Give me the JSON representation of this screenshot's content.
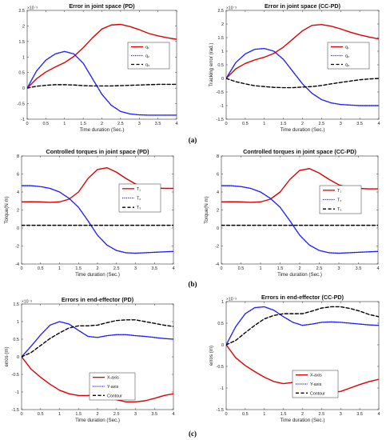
{
  "panel_labels": [
    "(a)",
    "(b)",
    "(c)"
  ],
  "chart_data": [
    {
      "type": "line",
      "title": "Error in joint space (PD)",
      "xlabel": "Time duration (Sec.)",
      "ylabel": "",
      "exponent": "×10⁻³",
      "xlim": [
        0,
        4
      ],
      "ylim": [
        -1,
        2.5
      ],
      "xticks": [
        "0",
        "0.5",
        "1",
        "1.5",
        "2",
        "2.5",
        "3",
        "3.5",
        "4"
      ],
      "yticks": [
        "-1",
        "-0.5",
        "0",
        "0.5",
        "1",
        "1.5",
        "2",
        "2.5"
      ],
      "legend": "center-right",
      "x": [
        0,
        0.25,
        0.5,
        0.75,
        1,
        1.25,
        1.5,
        1.75,
        2,
        2.25,
        2.5,
        2.75,
        3,
        3.25,
        3.5,
        3.75,
        4
      ],
      "series": [
        {
          "name": "q₁",
          "color": "#dd0000",
          "dash": "solid",
          "values": [
            0,
            0.3,
            0.52,
            0.68,
            0.82,
            1.02,
            1.3,
            1.62,
            1.9,
            2.03,
            2.05,
            1.98,
            1.88,
            1.76,
            1.68,
            1.62,
            1.57
          ]
        },
        {
          "name": "q₂",
          "color": "#1a1aff",
          "dash": "dotted",
          "values": [
            0,
            0.55,
            0.9,
            1.1,
            1.18,
            1.1,
            0.8,
            0.3,
            -0.2,
            -0.55,
            -0.75,
            -0.83,
            -0.86,
            -0.87,
            -0.87,
            -0.87,
            -0.87
          ]
        },
        {
          "name": "q₃",
          "color": "#000000",
          "dash": "dashed",
          "values": [
            0,
            0.06,
            0.09,
            0.11,
            0.11,
            0.1,
            0.08,
            0.07,
            0.07,
            0.07,
            0.08,
            0.09,
            0.1,
            0.11,
            0.12,
            0.12,
            0.12
          ]
        }
      ]
    },
    {
      "type": "line",
      "title": "Error in joint space (CC-PD)",
      "xlabel": "Time duration (Sec.)",
      "ylabel": "Tracking error (rad.)",
      "exponent": "×10⁻³",
      "xlim": [
        0,
        4
      ],
      "ylim": [
        -1.5,
        2.5
      ],
      "xticks": [
        "0",
        "0.5",
        "1",
        "1.5",
        "2",
        "2.5",
        "3",
        "3.5",
        "4"
      ],
      "yticks": [
        "-1.5",
        "-1",
        "-0.5",
        "0",
        "0.5",
        "1",
        "1.5",
        "2",
        "2.5"
      ],
      "legend": "center-right",
      "x": [
        0,
        0.25,
        0.5,
        0.75,
        1,
        1.25,
        1.5,
        1.75,
        2,
        2.25,
        2.5,
        2.75,
        3,
        3.25,
        3.5,
        3.75,
        4
      ],
      "series": [
        {
          "name": "q₁",
          "color": "#dd0000",
          "dash": "solid",
          "values": [
            0,
            0.35,
            0.55,
            0.68,
            0.78,
            0.92,
            1.15,
            1.45,
            1.75,
            1.95,
            1.98,
            1.92,
            1.82,
            1.7,
            1.6,
            1.52,
            1.45
          ]
        },
        {
          "name": "q₂",
          "color": "#1a1aff",
          "dash": "dotted",
          "values": [
            0,
            0.58,
            0.9,
            1.07,
            1.1,
            1.0,
            0.7,
            0.25,
            -0.2,
            -0.55,
            -0.78,
            -0.9,
            -0.96,
            -0.98,
            -1.0,
            -1.0,
            -1.0
          ]
        },
        {
          "name": "q₃",
          "color": "#000000",
          "dash": "dashed",
          "values": [
            0,
            -0.12,
            -0.2,
            -0.27,
            -0.3,
            -0.33,
            -0.34,
            -0.34,
            -0.32,
            -0.3,
            -0.26,
            -0.2,
            -0.15,
            -0.1,
            -0.05,
            -0.02,
            0
          ]
        }
      ]
    },
    {
      "type": "line",
      "title": "Controlled torques in joint space (PD)",
      "xlabel": "Time duration (Sec.)",
      "ylabel": "Torque(N m)",
      "exponent": "",
      "xlim": [
        0,
        4
      ],
      "ylim": [
        -4,
        8
      ],
      "xticks": [
        "0",
        "0.5",
        "1",
        "1.5",
        "2",
        "2.5",
        "3",
        "3.5",
        "4"
      ],
      "yticks": [
        "-4",
        "-2",
        "0",
        "2",
        "4",
        "6",
        "8"
      ],
      "legend": "center-right",
      "x": [
        0,
        0.25,
        0.5,
        0.75,
        1,
        1.25,
        1.5,
        1.75,
        2,
        2.25,
        2.5,
        2.75,
        3,
        3.25,
        3.5,
        3.75,
        4
      ],
      "series": [
        {
          "name": "T₁",
          "color": "#dd0000",
          "dash": "solid",
          "values": [
            2.9,
            2.92,
            2.9,
            2.85,
            2.9,
            3.2,
            4.0,
            5.5,
            6.5,
            6.7,
            6.2,
            5.5,
            4.9,
            4.6,
            4.45,
            4.4,
            4.4
          ]
        },
        {
          "name": "T₂",
          "color": "#1a1aff",
          "dash": "dotted",
          "values": [
            4.7,
            4.7,
            4.6,
            4.4,
            4.0,
            3.3,
            2.3,
            0.8,
            -0.8,
            -1.9,
            -2.5,
            -2.75,
            -2.8,
            -2.75,
            -2.7,
            -2.65,
            -2.6
          ]
        },
        {
          "name": "T₃",
          "color": "#000000",
          "dash": "dashed",
          "values": [
            0.3,
            0.3,
            0.3,
            0.3,
            0.3,
            0.3,
            0.3,
            0.3,
            0.3,
            0.3,
            0.3,
            0.3,
            0.3,
            0.3,
            0.3,
            0.3,
            0.3
          ]
        }
      ]
    },
    {
      "type": "line",
      "title": "Controlled torques in joint space (CC-PD)",
      "xlabel": "Time duration (Sec.)",
      "ylabel": "Torque(N m)",
      "exponent": "",
      "xlim": [
        0,
        4
      ],
      "ylim": [
        -4,
        8
      ],
      "xticks": [
        "0",
        "0.5",
        "1",
        "1.5",
        "2",
        "2.5",
        "3",
        "3.5",
        "4"
      ],
      "yticks": [
        "-4",
        "-2",
        "0",
        "2",
        "4",
        "6",
        "8"
      ],
      "legend": "center-right",
      "x": [
        0,
        0.25,
        0.5,
        0.75,
        1,
        1.25,
        1.5,
        1.75,
        2,
        2.25,
        2.5,
        2.75,
        3,
        3.25,
        3.5,
        3.75,
        4
      ],
      "series": [
        {
          "name": "T₁",
          "color": "#dd0000",
          "dash": "solid",
          "values": [
            2.9,
            2.92,
            2.9,
            2.85,
            2.9,
            3.2,
            4.0,
            5.4,
            6.4,
            6.6,
            6.1,
            5.4,
            4.8,
            4.5,
            4.4,
            4.35,
            4.35
          ]
        },
        {
          "name": "T₂",
          "color": "#1a1aff",
          "dash": "dotted",
          "values": [
            4.7,
            4.7,
            4.6,
            4.4,
            4.0,
            3.3,
            2.3,
            0.8,
            -0.8,
            -1.9,
            -2.5,
            -2.75,
            -2.8,
            -2.75,
            -2.7,
            -2.65,
            -2.6
          ]
        },
        {
          "name": "T₃",
          "color": "#000000",
          "dash": "dashed",
          "values": [
            0.3,
            0.3,
            0.3,
            0.3,
            0.3,
            0.3,
            0.3,
            0.3,
            0.3,
            0.3,
            0.3,
            0.3,
            0.3,
            0.3,
            0.3,
            0.3,
            0.3
          ]
        }
      ]
    },
    {
      "type": "line",
      "title": "Errors in end-effector (PD)",
      "xlabel": "Time duration (Sec.)",
      "ylabel": "erros (m)",
      "exponent": "×10⁻³",
      "xlim": [
        0,
        4
      ],
      "ylim": [
        -1.5,
        1.5
      ],
      "xticks": [
        "0",
        "0.5",
        "1",
        "1.5",
        "2",
        "2.5",
        "3",
        "3.5",
        "4"
      ],
      "yticks": [
        "-1.5",
        "-1",
        "-0.5",
        "0",
        "0.5",
        "1",
        "1.5"
      ],
      "legend": "bottom-left",
      "x": [
        0,
        0.25,
        0.5,
        0.75,
        1,
        1.25,
        1.5,
        1.75,
        2,
        2.25,
        2.5,
        2.75,
        3,
        3.25,
        3.5,
        3.75,
        4
      ],
      "series": [
        {
          "name": "X-axis",
          "color": "#dd0000",
          "dash": "solid",
          "values": [
            0,
            -0.35,
            -0.58,
            -0.78,
            -0.95,
            -1.05,
            -1.1,
            -1.1,
            -1.07,
            -1.12,
            -1.22,
            -1.28,
            -1.28,
            -1.25,
            -1.18,
            -1.1,
            -1.05
          ]
        },
        {
          "name": "Y-axis",
          "color": "#1a1aff",
          "dash": "dotted",
          "values": [
            0,
            0.3,
            0.62,
            0.9,
            1.0,
            0.93,
            0.75,
            0.58,
            0.55,
            0.6,
            0.63,
            0.63,
            0.6,
            0.58,
            0.55,
            0.52,
            0.5
          ]
        },
        {
          "name": "Contour",
          "color": "#000000",
          "dash": "dashed",
          "values": [
            0,
            0.12,
            0.32,
            0.52,
            0.68,
            0.82,
            0.88,
            0.88,
            0.9,
            0.97,
            1.03,
            1.05,
            1.05,
            1.0,
            0.95,
            0.9,
            0.86
          ]
        }
      ]
    },
    {
      "type": "line",
      "title": "Errors in end-effector (CC-PD)",
      "xlabel": "Time duration (Sec.)",
      "ylabel": "erros (m)",
      "exponent": "×10⁻³",
      "xlim": [
        0,
        4
      ],
      "ylim": [
        -1.5,
        1
      ],
      "xticks": [
        "0",
        "0.5",
        "1",
        "1.5",
        "2",
        "2.5",
        "3",
        "3.5",
        "4"
      ],
      "yticks": [
        "-1.5",
        "-1",
        "-0.5",
        "0",
        "0.5",
        "1"
      ],
      "legend": "bottom-left",
      "x": [
        0,
        0.25,
        0.5,
        0.75,
        1,
        1.25,
        1.5,
        1.75,
        2,
        2.25,
        2.5,
        2.75,
        3,
        3.25,
        3.5,
        3.75,
        4
      ],
      "series": [
        {
          "name": "X-axis",
          "color": "#dd0000",
          "dash": "solid",
          "values": [
            0,
            -0.3,
            -0.48,
            -0.62,
            -0.75,
            -0.85,
            -0.9,
            -0.87,
            -0.88,
            -0.97,
            -1.06,
            -1.1,
            -1.08,
            -1.0,
            -0.92,
            -0.85,
            -0.8
          ]
        },
        {
          "name": "Y-axis",
          "color": "#1a1aff",
          "dash": "dotted",
          "values": [
            0,
            0.42,
            0.72,
            0.86,
            0.88,
            0.8,
            0.65,
            0.52,
            0.45,
            0.48,
            0.52,
            0.53,
            0.52,
            0.5,
            0.48,
            0.46,
            0.45
          ]
        },
        {
          "name": "Contour",
          "color": "#000000",
          "dash": "dashed",
          "values": [
            0,
            0.1,
            0.28,
            0.45,
            0.6,
            0.68,
            0.72,
            0.72,
            0.72,
            0.78,
            0.85,
            0.88,
            0.88,
            0.84,
            0.78,
            0.7,
            0.65
          ]
        }
      ]
    }
  ]
}
